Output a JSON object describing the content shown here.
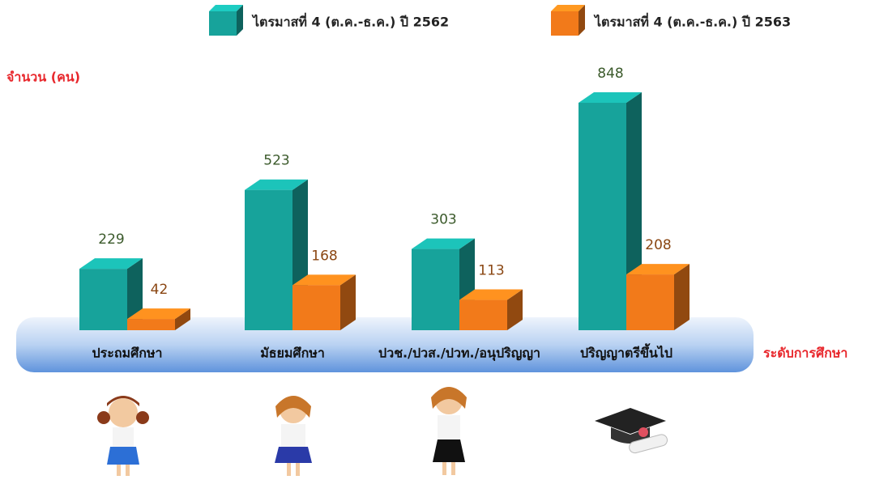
{
  "chart_data": {
    "type": "bar3d",
    "y_label": "จำนวน (คน)",
    "x_label": "ระดับการศึกษา",
    "categories": [
      "ประถมศึกษา",
      "มัธยมศึกษา",
      "ปวช./ปวส./ปวท./อนุปริญญา",
      "ปริญญาตรีขึ้นไป"
    ],
    "series": [
      {
        "name": "ไตรมาสที่ 4 (ต.ค.-ธ.ค.) ปี 2562",
        "color": "#17a39b",
        "values": [
          229,
          523,
          303,
          848
        ]
      },
      {
        "name": "ไตรมาสที่ 4 (ต.ค.-ธ.ค.) ปี 2563",
        "color": "#f27a1a",
        "values": [
          42,
          168,
          113,
          208
        ]
      }
    ]
  }
}
